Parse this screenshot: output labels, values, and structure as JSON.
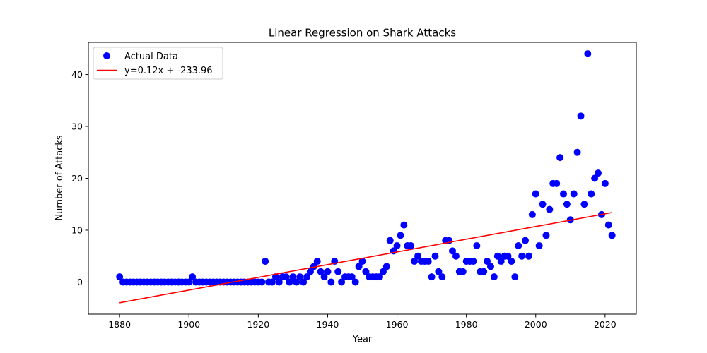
{
  "chart_data": {
    "type": "scatter",
    "title": "Linear Regression on Shark Attacks",
    "xlabel": "Year",
    "ylabel": "Number of Attacks",
    "xlim": [
      1871,
      2029
    ],
    "ylim": [
      -6.2,
      46.2
    ],
    "xticks": [
      1880,
      1900,
      1920,
      1940,
      1960,
      1980,
      2000,
      2020
    ],
    "yticks": [
      0,
      10,
      20,
      30,
      40
    ],
    "grid": false,
    "legend_position": "upper-left",
    "series": [
      {
        "name": "Actual Data",
        "kind": "scatter",
        "color": "#0000ff",
        "x": [
          1880,
          1881,
          1882,
          1883,
          1884,
          1885,
          1886,
          1887,
          1888,
          1889,
          1890,
          1891,
          1892,
          1893,
          1894,
          1895,
          1896,
          1897,
          1898,
          1899,
          1900,
          1901,
          1902,
          1903,
          1904,
          1905,
          1906,
          1907,
          1908,
          1909,
          1910,
          1911,
          1912,
          1913,
          1914,
          1915,
          1916,
          1917,
          1918,
          1919,
          1920,
          1921,
          1922,
          1923,
          1924,
          1925,
          1926,
          1927,
          1928,
          1929,
          1930,
          1931,
          1932,
          1933,
          1934,
          1935,
          1936,
          1937,
          1938,
          1939,
          1940,
          1941,
          1942,
          1943,
          1944,
          1945,
          1946,
          1947,
          1948,
          1949,
          1950,
          1951,
          1952,
          1953,
          1954,
          1955,
          1956,
          1957,
          1958,
          1959,
          1960,
          1961,
          1962,
          1963,
          1964,
          1965,
          1966,
          1967,
          1968,
          1969,
          1970,
          1971,
          1972,
          1973,
          1974,
          1975,
          1976,
          1977,
          1978,
          1979,
          1980,
          1981,
          1982,
          1983,
          1984,
          1985,
          1986,
          1987,
          1988,
          1989,
          1990,
          1991,
          1992,
          1993,
          1994,
          1995,
          1996,
          1997,
          1998,
          1999,
          2000,
          2001,
          2002,
          2003,
          2004,
          2005,
          2006,
          2007,
          2008,
          2009,
          2010,
          2011,
          2012,
          2013,
          2014,
          2015,
          2016,
          2017,
          2018,
          2019,
          2020,
          2021,
          2022
        ],
        "y": [
          1,
          0,
          0,
          0,
          0,
          0,
          0,
          0,
          0,
          0,
          0,
          0,
          0,
          0,
          0,
          0,
          0,
          0,
          0,
          0,
          0,
          1,
          0,
          0,
          0,
          0,
          0,
          0,
          0,
          0,
          0,
          0,
          0,
          0,
          0,
          0,
          0,
          0,
          0,
          0,
          0,
          0,
          4,
          0,
          0,
          1,
          0,
          1,
          1,
          0,
          1,
          0,
          1,
          0,
          1,
          2,
          3,
          4,
          2,
          1,
          2,
          0,
          4,
          2,
          0,
          1,
          1,
          1,
          0,
          3,
          4,
          2,
          1,
          1,
          1,
          1,
          2,
          3,
          8,
          6,
          7,
          9,
          11,
          7,
          7,
          4,
          5,
          4,
          4,
          4,
          1,
          5,
          2,
          1,
          8,
          8,
          6,
          5,
          2,
          2,
          4,
          4,
          4,
          7,
          2,
          2,
          4,
          3,
          1,
          5,
          4,
          5,
          5,
          4,
          1,
          7,
          5,
          8,
          5,
          13,
          17,
          7,
          15,
          9,
          14,
          19,
          19,
          24,
          17,
          15,
          12,
          17,
          25,
          32,
          15,
          44,
          17,
          20,
          21,
          13,
          19,
          11,
          9
        ]
      },
      {
        "name": "y=0.12x + -233.96",
        "kind": "line",
        "color": "#ff0000",
        "x": [
          1880,
          2022
        ],
        "y": [
          -4.0,
          13.4
        ]
      }
    ]
  }
}
